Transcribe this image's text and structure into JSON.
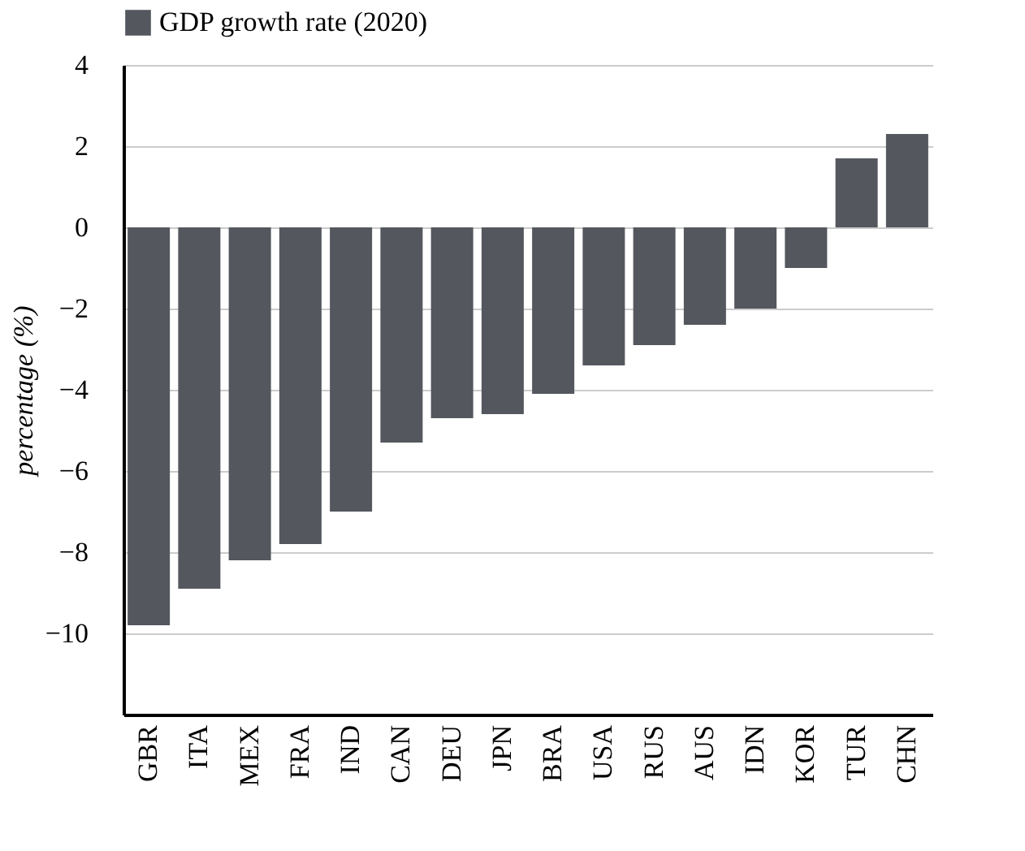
{
  "chart_data": {
    "type": "bar",
    "categories": [
      "GBR",
      "ITA",
      "MEX",
      "FRA",
      "IND",
      "CAN",
      "DEU",
      "JPN",
      "BRA",
      "USA",
      "RUS",
      "AUS",
      "IDN",
      "KOR",
      "TUR",
      "CHN"
    ],
    "series": [
      {
        "name": "GDP growth rate (2020)",
        "color": "#54575e",
        "values": [
          -9.8,
          -8.9,
          -8.2,
          -7.8,
          -7.0,
          -5.3,
          -4.7,
          -4.6,
          -4.1,
          -3.4,
          -2.9,
          -2.4,
          -2.0,
          -1.0,
          1.7,
          2.3
        ]
      }
    ],
    "ylabel": "percentage (%)",
    "ylim": [
      -12,
      4
    ],
    "yticks": [
      -10,
      -8,
      -6,
      -4,
      -2,
      0,
      2,
      4
    ],
    "grid": "y",
    "legend": "top"
  }
}
